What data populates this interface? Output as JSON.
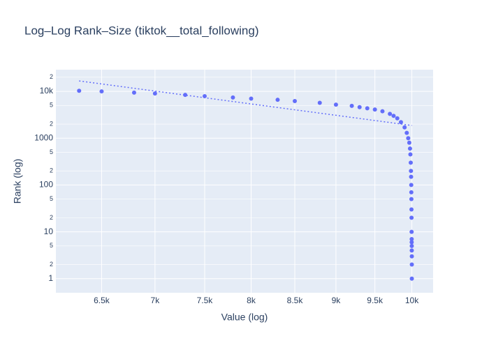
{
  "chart_data": {
    "type": "scatter",
    "title": "Log–Log Rank–Size (tiktok__total_following)",
    "x_label": "Value (log)",
    "y_label": "Rank (log)",
    "xlog": true,
    "ylog": true,
    "grid": true,
    "xlim": [
      6100,
      10300
    ],
    "ylim": [
      0.5,
      29000
    ],
    "xticks": [
      {
        "value": 6500,
        "label": "6.5k"
      },
      {
        "value": 7000,
        "label": "7k"
      },
      {
        "value": 7500,
        "label": "7.5k"
      },
      {
        "value": 8000,
        "label": "8k"
      },
      {
        "value": 8500,
        "label": "8.5k"
      },
      {
        "value": 9000,
        "label": "9k"
      },
      {
        "value": 9500,
        "label": "9.5k"
      },
      {
        "value": 10000,
        "label": "10k"
      }
    ],
    "yticks": [
      1,
      2,
      5,
      10,
      {
        "value": 20,
        "label": "2"
      },
      {
        "value": 50,
        "label": "5"
      },
      100,
      {
        "value": 200,
        "label": "2"
      },
      {
        "value": 500,
        "label": "5"
      },
      1000,
      {
        "value": 2000,
        "label": "2"
      },
      {
        "value": 5000,
        "label": "5"
      },
      {
        "value": 10000,
        "label": "10k"
      },
      {
        "value": 20000,
        "label": "2"
      }
    ],
    "series": [
      {
        "mode": "markers",
        "color": "#636efa",
        "x": [
          6300,
          6500,
          6800,
          7000,
          7300,
          7500,
          7800,
          8000,
          8300,
          8500,
          8800,
          9000,
          9200,
          9300,
          9400,
          9500,
          9600,
          9700,
          9750,
          9800,
          9850,
          9900,
          9930,
          9950,
          9965,
          9975,
          9980,
          9985,
          9988,
          9990,
          9992,
          9993,
          9994,
          9995,
          9996,
          9997,
          9998,
          9998,
          9999,
          9999,
          10000,
          10000,
          10000
        ],
        "values": [
          10300,
          10000,
          9400,
          9000,
          8400,
          7900,
          7400,
          7000,
          6600,
          6200,
          5700,
          5200,
          4900,
          4600,
          4350,
          4100,
          3750,
          3300,
          3000,
          2650,
          2200,
          1700,
          1300,
          1000,
          800,
          600,
          450,
          300,
          200,
          150,
          100,
          70,
          50,
          30,
          20,
          10,
          7,
          6,
          5,
          4,
          3,
          2,
          1
        ]
      },
      {
        "mode": "lines",
        "dash": "dot",
        "color": "#636efa",
        "x": [
          6300,
          10000
        ],
        "values": [
          16700,
          1870
        ]
      }
    ]
  }
}
